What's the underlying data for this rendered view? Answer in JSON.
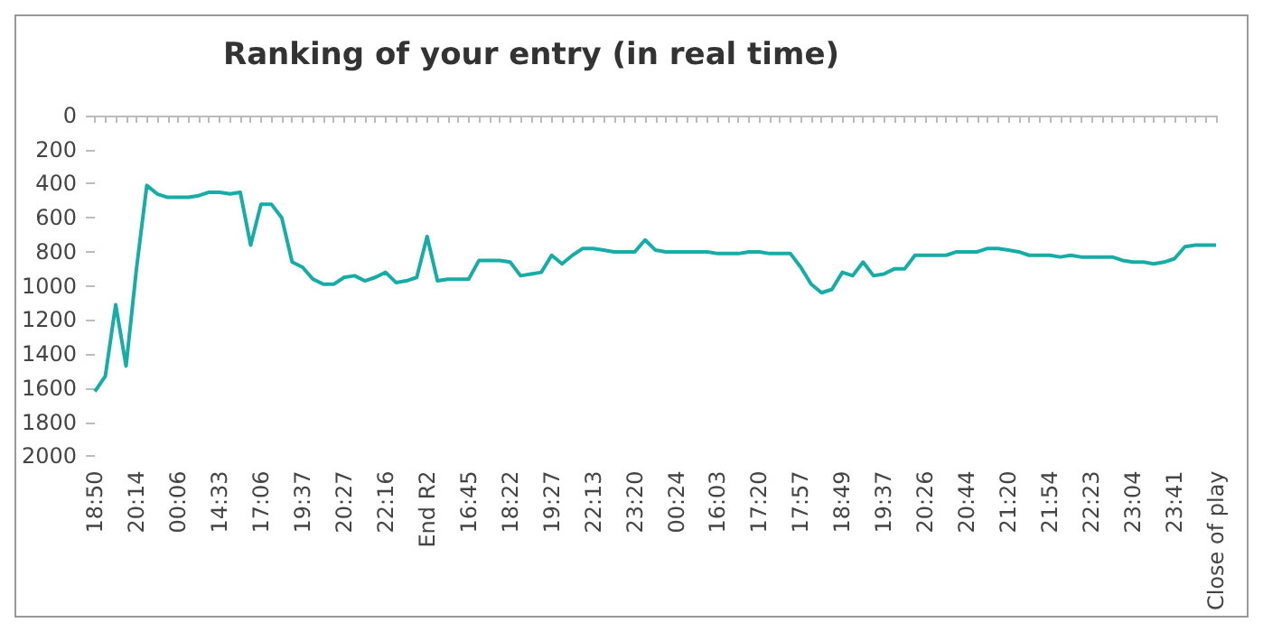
{
  "chart_data": {
    "type": "line",
    "title": "Ranking of your entry (in real time)",
    "categories": [
      "18:50",
      null,
      null,
      null,
      "20:14",
      null,
      null,
      null,
      "00:06",
      null,
      null,
      null,
      "14:33",
      null,
      null,
      null,
      "17:06",
      null,
      null,
      null,
      "19:37",
      null,
      null,
      null,
      "20:27",
      null,
      null,
      null,
      "22:16",
      null,
      null,
      null,
      "End R2",
      null,
      null,
      null,
      "16:45",
      null,
      null,
      null,
      "18:22",
      null,
      null,
      null,
      "19:27",
      null,
      null,
      null,
      "22:13",
      null,
      null,
      null,
      "23:20",
      null,
      null,
      null,
      "00:24",
      null,
      null,
      null,
      "16:03",
      null,
      null,
      null,
      "17:20",
      null,
      null,
      null,
      "17:57",
      null,
      null,
      null,
      "18:49",
      null,
      null,
      null,
      "19:37",
      null,
      null,
      null,
      "20:26",
      null,
      null,
      null,
      "20:44",
      null,
      null,
      null,
      "21:20",
      null,
      null,
      null,
      "21:54",
      null,
      null,
      null,
      "22:23",
      null,
      null,
      null,
      "23:04",
      null,
      null,
      null,
      "23:41",
      null,
      null,
      null,
      "Close of play"
    ],
    "series": [
      {
        "color": "#17aca6",
        "values": [
          1620,
          1530,
          1110,
          1470,
          900,
          410,
          460,
          480,
          480,
          480,
          470,
          450,
          450,
          460,
          450,
          760,
          520,
          520,
          600,
          860,
          890,
          960,
          990,
          990,
          950,
          940,
          970,
          950,
          920,
          980,
          970,
          950,
          710,
          970,
          960,
          960,
          960,
          850,
          850,
          850,
          860,
          940,
          930,
          920,
          820,
          870,
          820,
          780,
          780,
          790,
          800,
          800,
          800,
          730,
          790,
          800,
          800,
          800,
          800,
          800,
          810,
          810,
          810,
          800,
          800,
          810,
          810,
          810,
          890,
          990,
          1040,
          1020,
          920,
          940,
          860,
          940,
          930,
          900,
          900,
          820,
          820,
          820,
          820,
          800,
          800,
          800,
          780,
          780,
          790,
          800,
          820,
          820,
          820,
          830,
          820,
          830,
          830,
          830,
          830,
          850,
          860,
          860,
          870,
          860,
          840,
          770,
          760,
          760,
          760
        ]
      }
    ],
    "ylim": [
      2000,
      0
    ],
    "yticks": [
      0,
      200,
      400,
      600,
      800,
      1000,
      1200,
      1400,
      1600,
      1800,
      2000
    ],
    "grid": false,
    "marker": "none",
    "line_style": "solid"
  }
}
